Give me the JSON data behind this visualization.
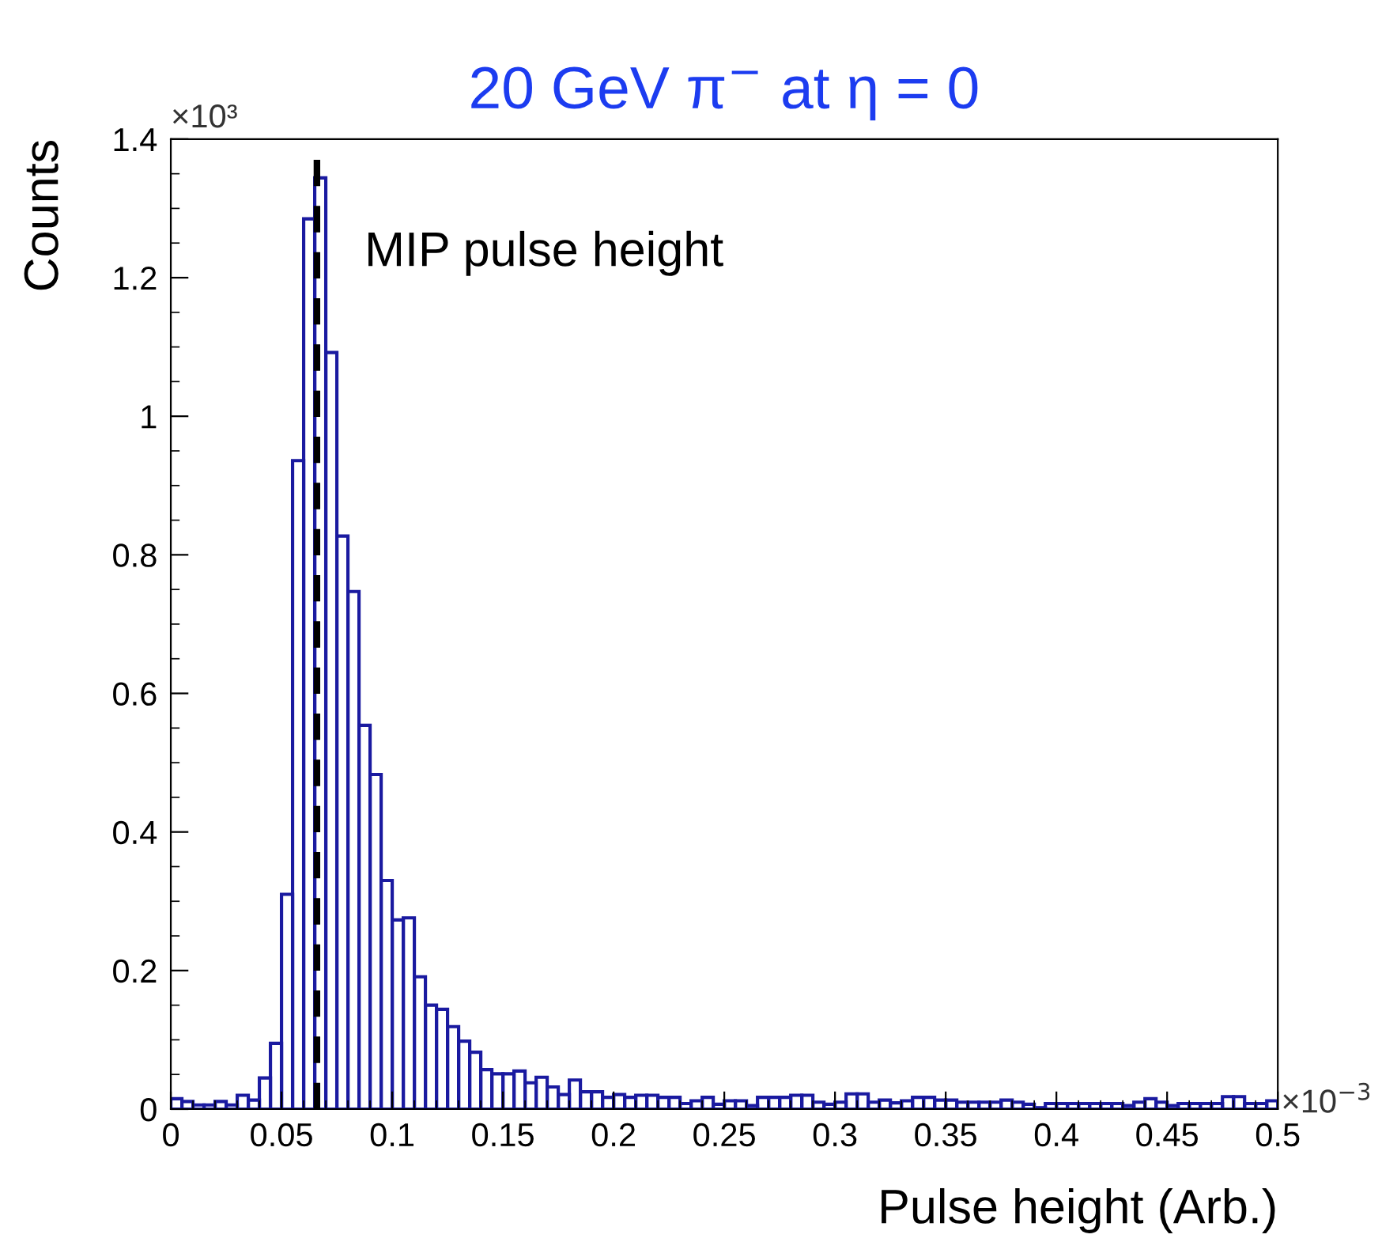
{
  "chart_data": {
    "type": "histogram",
    "title": "20 GeV π$^{−}$ at η = 0",
    "xlabel": "Pulse height (Arb.)",
    "ylabel": "Counts",
    "color": "#1a1aa0",
    "bins": [
      0,
      0.005,
      0.01,
      0.015,
      0.02,
      0.025,
      0.03,
      0.035,
      0.04,
      0.045,
      0.05,
      0.055,
      0.06,
      0.065,
      0.07,
      0.075,
      0.08,
      0.085,
      0.09,
      0.095,
      0.1,
      0.105,
      0.11,
      0.115,
      0.12,
      0.125,
      0.13,
      0.135,
      0.14,
      0.145,
      0.15,
      0.155,
      0.16,
      0.165,
      0.17,
      0.175,
      0.18,
      0.185,
      0.19,
      0.195,
      0.2,
      0.205,
      0.21,
      0.215,
      0.22,
      0.225,
      0.23,
      0.235,
      0.24,
      0.245,
      0.25,
      0.255,
      0.26,
      0.265,
      0.27,
      0.275,
      0.28,
      0.285,
      0.29,
      0.295,
      0.3,
      0.305,
      0.31,
      0.315,
      0.32,
      0.325,
      0.33,
      0.335,
      0.34,
      0.345,
      0.35,
      0.355,
      0.36,
      0.365,
      0.37,
      0.375,
      0.38,
      0.385,
      0.39,
      0.395,
      0.4,
      0.405,
      0.41,
      0.415,
      0.42,
      0.425,
      0.43,
      0.435,
      0.44,
      0.445,
      0.45,
      0.455,
      0.46,
      0.465,
      0.47,
      0.475,
      0.48,
      0.485,
      0.49,
      0.495,
      0.5
    ],
    "values": [
      0.015,
      0.011,
      0.006,
      0.006,
      0.011,
      0.006,
      0.02,
      0.013,
      0.045,
      0.095,
      0.31,
      0.936,
      1.285,
      1.344,
      1.092,
      0.827,
      0.747,
      0.554,
      0.483,
      0.33,
      0.273,
      0.276,
      0.191,
      0.15,
      0.144,
      0.119,
      0.098,
      0.082,
      0.057,
      0.051,
      0.051,
      0.055,
      0.038,
      0.046,
      0.032,
      0.021,
      0.042,
      0.025,
      0.025,
      0.017,
      0.021,
      0.017,
      0.02,
      0.02,
      0.017,
      0.017,
      0.008,
      0.012,
      0.017,
      0.007,
      0.012,
      0.012,
      0.005,
      0.017,
      0.017,
      0.017,
      0.02,
      0.02,
      0.01,
      0.007,
      0.01,
      0.022,
      0.022,
      0.01,
      0.013,
      0.009,
      0.012,
      0.017,
      0.017,
      0.013,
      0.013,
      0.01,
      0.01,
      0.01,
      0.01,
      0.013,
      0.01,
      0.007,
      0.002,
      0.008,
      0.008,
      0.008,
      0.008,
      0.008,
      0.008,
      0.008,
      0.005,
      0.01,
      0.015,
      0.01,
      0.005,
      0.008,
      0.008,
      0.008,
      0.008,
      0.018,
      0.018,
      0.008,
      0.008,
      0.012
    ],
    "xlim": [
      0,
      0.5
    ],
    "xticks": [
      0,
      0.05,
      0.1,
      0.15,
      0.2,
      0.25,
      0.3,
      0.35,
      0.4,
      0.45,
      0.5
    ],
    "ylim": [
      0,
      1.4
    ],
    "yticks": [
      0,
      0.2,
      0.4,
      0.6,
      0.8,
      1,
      1.2,
      1.4
    ],
    "ref_lines": [
      {
        "axis": "x",
        "value": 0.066,
        "label": "MIP pulse height",
        "color": "#000000",
        "line_style": "dashed"
      }
    ],
    "annotations": [
      "×10³",
      "×10$^{−3}$"
    ],
    "grid": false,
    "legend": false
  }
}
